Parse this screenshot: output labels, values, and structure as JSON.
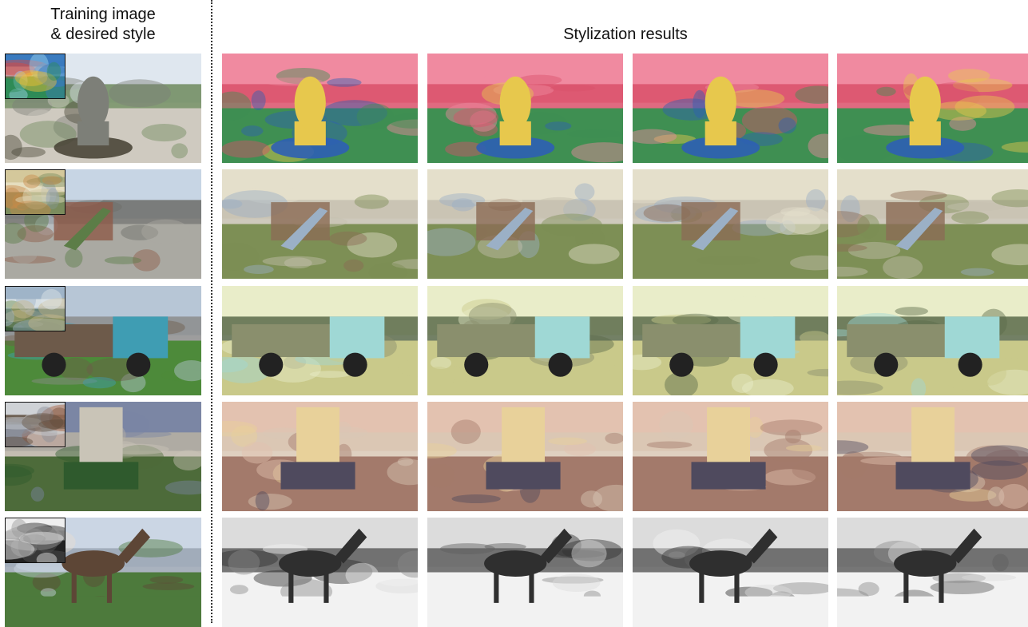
{
  "headers": {
    "training": "Training image\n& desired style",
    "results": "Stylization results"
  },
  "rows": [
    {
      "id": "statue",
      "training_palette": [
        "#dfe7ef",
        "#7d7f78",
        "#4a4638",
        "#cfcac0",
        "#6e8a5d"
      ],
      "style_palette": [
        "#3a7bbf",
        "#e0473c",
        "#f2c233",
        "#2e8b57",
        "#a0d8f0"
      ],
      "result_palette": [
        "#f08aa0",
        "#e7c84d",
        "#2e5fb4",
        "#3f8f52",
        "#d9506a"
      ]
    },
    {
      "id": "playground",
      "training_palette": [
        "#c7d5e4",
        "#8d5a48",
        "#5c7d47",
        "#aaa9a2",
        "#6c6c68"
      ],
      "style_palette": [
        "#d4c89b",
        "#8fa0b6",
        "#c78a4a",
        "#7b8c5d",
        "#e7e0c4"
      ],
      "result_palette": [
        "#e4dfcb",
        "#8b6b55",
        "#9bb0c6",
        "#7d8f55",
        "#c6c0b0"
      ]
    },
    {
      "id": "truck",
      "training_palette": [
        "#b7c6d6",
        "#3f9db3",
        "#6d5a4a",
        "#4d8a3a",
        "#8c8c8c"
      ],
      "style_palette": [
        "#9fb4c8",
        "#6d8b4a",
        "#c9b98a",
        "#3b5c3a",
        "#dfe6e9"
      ],
      "result_palette": [
        "#e9edc9",
        "#9fd8d5",
        "#8a8f6d",
        "#c9c98a",
        "#5b6a4a"
      ]
    },
    {
      "id": "monument",
      "training_palette": [
        "#7b86a4",
        "#c9c4b7",
        "#2f5a2d",
        "#4d6b3a",
        "#b8b1a3"
      ],
      "style_palette": [
        "#cfd2d6",
        "#a35a3a",
        "#e8e4dc",
        "#8a8f99",
        "#5b4a3a"
      ],
      "result_palette": [
        "#e3c2b0",
        "#e8d19a",
        "#4f4a5e",
        "#a37a6b",
        "#d9c8b5"
      ]
    },
    {
      "id": "horse",
      "training_palette": [
        "#cbd6e4",
        "#5d4636",
        "#e9ddd0",
        "#4d7a3c",
        "#9aa5b3"
      ],
      "style_palette": [
        "#efefef",
        "#555555",
        "#999999",
        "#222222",
        "#cfcfcf"
      ],
      "result_palette": [
        "#dcdcdc",
        "#2f2f2f",
        "#8a8a8a",
        "#f2f2f2",
        "#5e5e5e"
      ]
    }
  ]
}
